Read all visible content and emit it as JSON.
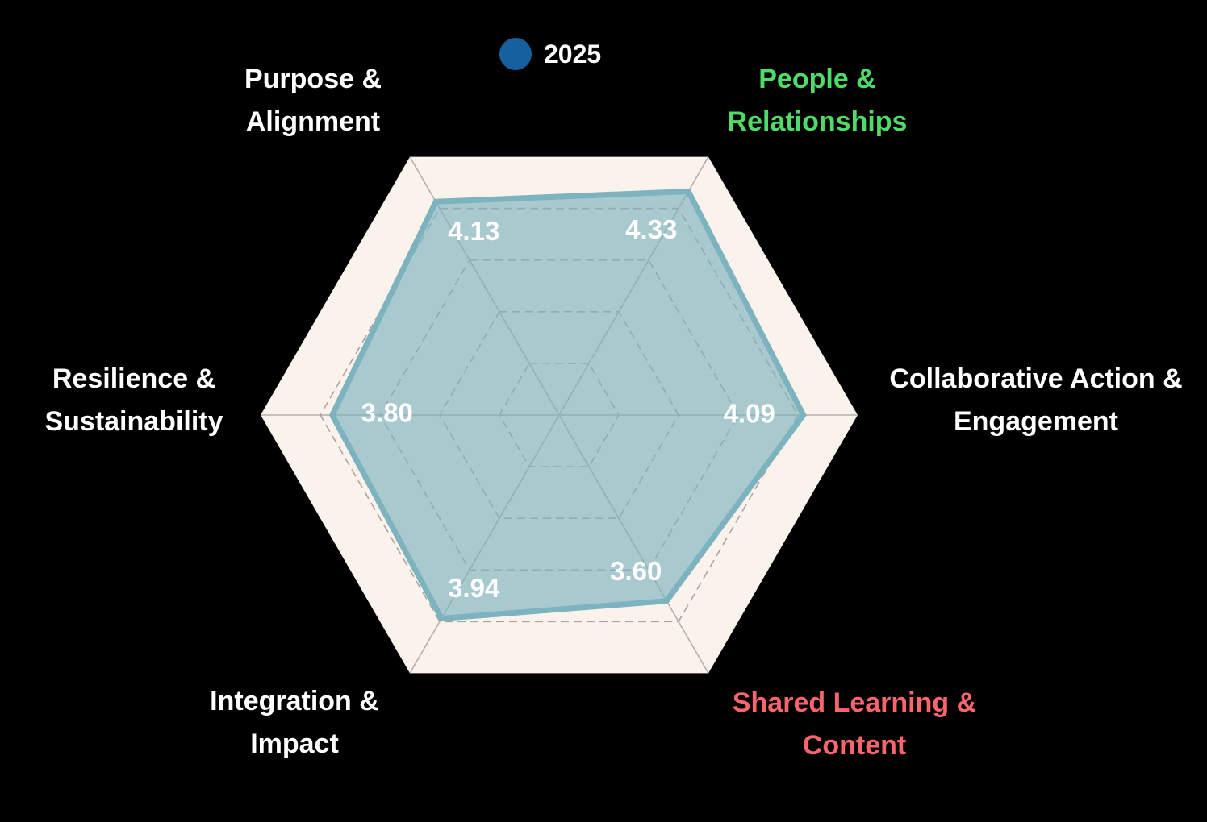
{
  "background_color": "#000000",
  "legend": {
    "label": "2025",
    "dot_color": "#16609f",
    "text_color": "#ffffff"
  },
  "chart_data": {
    "type": "radar",
    "title": "",
    "scale": {
      "min": 0,
      "max": 5,
      "gridlines": [
        1,
        2,
        3,
        4
      ],
      "grid_style": "dashed"
    },
    "axes": [
      {
        "label": "Purpose & Alignment",
        "lines": [
          "Purpose &",
          "Alignment"
        ],
        "label_color": "#ffffff"
      },
      {
        "label": "People & Relationships",
        "lines": [
          "People &",
          "Relationships"
        ],
        "label_color": "#4fdb68"
      },
      {
        "label": "Collaborative Action & Engagement",
        "lines": [
          "Collaborative Action &",
          "Engagement"
        ],
        "label_color": "#ffffff"
      },
      {
        "label": "Shared Learning & Content",
        "lines": [
          "Shared Learning &",
          "Content"
        ],
        "label_color": "#f8656c"
      },
      {
        "label": "Integration & Impact",
        "lines": [
          "Integration &",
          "Impact"
        ],
        "label_color": "#ffffff"
      },
      {
        "label": "Resilience & Sustainability",
        "lines": [
          "Resilience &",
          "Sustainability"
        ],
        "label_color": "#ffffff"
      }
    ],
    "series": [
      {
        "name": "2025",
        "values": [
          4.13,
          4.33,
          4.09,
          3.6,
          3.94,
          3.8
        ],
        "color": "#7db2bf",
        "fill_opacity": 0.65
      }
    ],
    "value_label_color": "#ffffff",
    "grid": {
      "panel_color": "#faf3eb",
      "spoke_color": "#b5b0a8",
      "ring_color": "#aba69d"
    },
    "legend_position": "top"
  }
}
